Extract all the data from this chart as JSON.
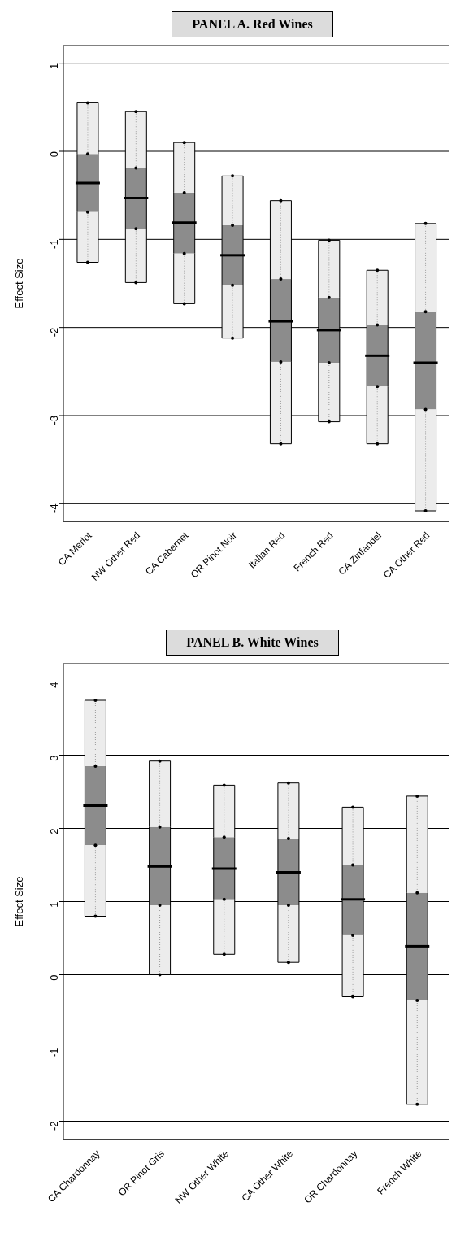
{
  "chart_data": [
    {
      "type": "box",
      "title": "PANEL A. Red Wines",
      "ylabel": "Effect Size",
      "categories": [
        "CA Merlot",
        "NW Other Red",
        "CA Cabernet",
        "OR Pinot Noir",
        "Italian Red",
        "French Red",
        "CA Zinfandel",
        "CA Other Red"
      ],
      "color": "#8c8c8c",
      "ylim": [
        -4.2,
        1.2
      ],
      "yticks": [
        -4,
        -3,
        -2,
        -1,
        0,
        1
      ],
      "grid": "y",
      "boxes": [
        {
          "low": -1.26,
          "q1": -0.69,
          "median": -0.36,
          "q3": -0.03,
          "high": 0.55
        },
        {
          "low": -1.49,
          "q1": -0.88,
          "median": -0.53,
          "q3": -0.19,
          "high": 0.45
        },
        {
          "low": -1.73,
          "q1": -1.16,
          "median": -0.81,
          "q3": -0.47,
          "high": 0.1
        },
        {
          "low": -2.12,
          "q1": -1.52,
          "median": -1.18,
          "q3": -0.84,
          "high": -0.28
        },
        {
          "low": -3.32,
          "q1": -2.39,
          "median": -1.93,
          "q3": -1.45,
          "high": -0.56
        },
        {
          "low": -3.07,
          "q1": -2.4,
          "median": -2.03,
          "q3": -1.66,
          "high": -1.01
        },
        {
          "low": -3.32,
          "q1": -2.67,
          "median": -2.32,
          "q3": -1.97,
          "high": -1.35
        },
        {
          "low": -4.08,
          "q1": -2.93,
          "median": -2.4,
          "q3": -1.82,
          "high": -0.82
        }
      ]
    },
    {
      "type": "box",
      "title": "PANEL B. White Wines",
      "ylabel": "Effect Size",
      "categories": [
        "CA Chardonnay",
        "OR Pinot Gris",
        "NW Other White",
        "CA Other White",
        "OR Chardonnay",
        "French White"
      ],
      "color": "#8c8c8c",
      "ylim": [
        -2.25,
        4.25
      ],
      "yticks": [
        -2,
        -1,
        0,
        1,
        2,
        3,
        4
      ],
      "grid": "y",
      "boxes": [
        {
          "low": 0.8,
          "q1": 1.77,
          "median": 2.31,
          "q3": 2.85,
          "high": 3.75
        },
        {
          "low": 0.0,
          "q1": 0.95,
          "median": 1.48,
          "q3": 2.02,
          "high": 2.92
        },
        {
          "low": 0.28,
          "q1": 1.03,
          "median": 1.45,
          "q3": 1.88,
          "high": 2.59
        },
        {
          "low": 0.17,
          "q1": 0.95,
          "median": 1.4,
          "q3": 1.86,
          "high": 2.62
        },
        {
          "low": -0.3,
          "q1": 0.54,
          "median": 1.03,
          "q3": 1.5,
          "high": 2.29
        },
        {
          "low": -1.77,
          "q1": -0.35,
          "median": 0.39,
          "q3": 1.12,
          "high": 2.44
        }
      ]
    }
  ]
}
